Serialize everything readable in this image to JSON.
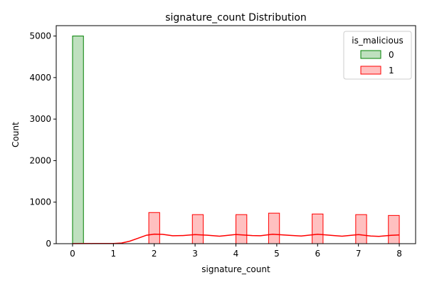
{
  "chart_data": {
    "type": "bar",
    "subtype": "histogram-with-kde",
    "title": "signature_count Distribution",
    "xlabel": "signature_count",
    "ylabel": "Count",
    "xlim": [
      -0.4,
      8.4
    ],
    "ylim": [
      0,
      5250
    ],
    "xticks": [
      0,
      1,
      2,
      3,
      4,
      5,
      6,
      7,
      8
    ],
    "yticks": [
      0,
      1000,
      2000,
      3000,
      4000,
      5000
    ],
    "grid": false,
    "legend": {
      "title": "is_malicious",
      "placement": "top-right"
    },
    "bin_width": 0.2667,
    "series": [
      {
        "name": "0",
        "face_color": "#bfe0bf",
        "edge_color": "#008000",
        "bins": [
          {
            "x0": 0.0,
            "x1": 0.2667,
            "count": 5000
          }
        ],
        "kde": null
      },
      {
        "name": "1",
        "face_color": "#ffc0c0",
        "edge_color": "#ff0000",
        "bins": [
          {
            "x0": 1.8667,
            "x1": 2.1333,
            "count": 750
          },
          {
            "x0": 2.9333,
            "x1": 3.2,
            "count": 700
          },
          {
            "x0": 4.0,
            "x1": 4.2667,
            "count": 700
          },
          {
            "x0": 4.8,
            "x1": 5.0667,
            "count": 735
          },
          {
            "x0": 5.8667,
            "x1": 6.1333,
            "count": 715
          },
          {
            "x0": 6.9333,
            "x1": 7.2,
            "count": 700
          },
          {
            "x0": 7.7333,
            "x1": 8.0,
            "count": 680
          }
        ],
        "kde": {
          "color": "#ff0000",
          "points": [
            [
              0.0,
              2
            ],
            [
              0.5,
              3
            ],
            [
              1.0,
              5
            ],
            [
              1.2,
              15
            ],
            [
              1.4,
              60
            ],
            [
              1.6,
              130
            ],
            [
              1.8,
              200
            ],
            [
              2.0,
              230
            ],
            [
              2.2,
              225
            ],
            [
              2.45,
              190
            ],
            [
              2.7,
              195
            ],
            [
              3.0,
              220
            ],
            [
              3.3,
              205
            ],
            [
              3.6,
              180
            ],
            [
              4.0,
              222
            ],
            [
              4.4,
              195
            ],
            [
              4.6,
              190
            ],
            [
              4.9,
              228
            ],
            [
              5.3,
              200
            ],
            [
              5.6,
              185
            ],
            [
              6.0,
              228
            ],
            [
              6.4,
              195
            ],
            [
              6.6,
              180
            ],
            [
              7.0,
              220
            ],
            [
              7.3,
              185
            ],
            [
              7.5,
              175
            ],
            [
              7.8,
              200
            ],
            [
              8.0,
              210
            ]
          ]
        }
      }
    ]
  }
}
